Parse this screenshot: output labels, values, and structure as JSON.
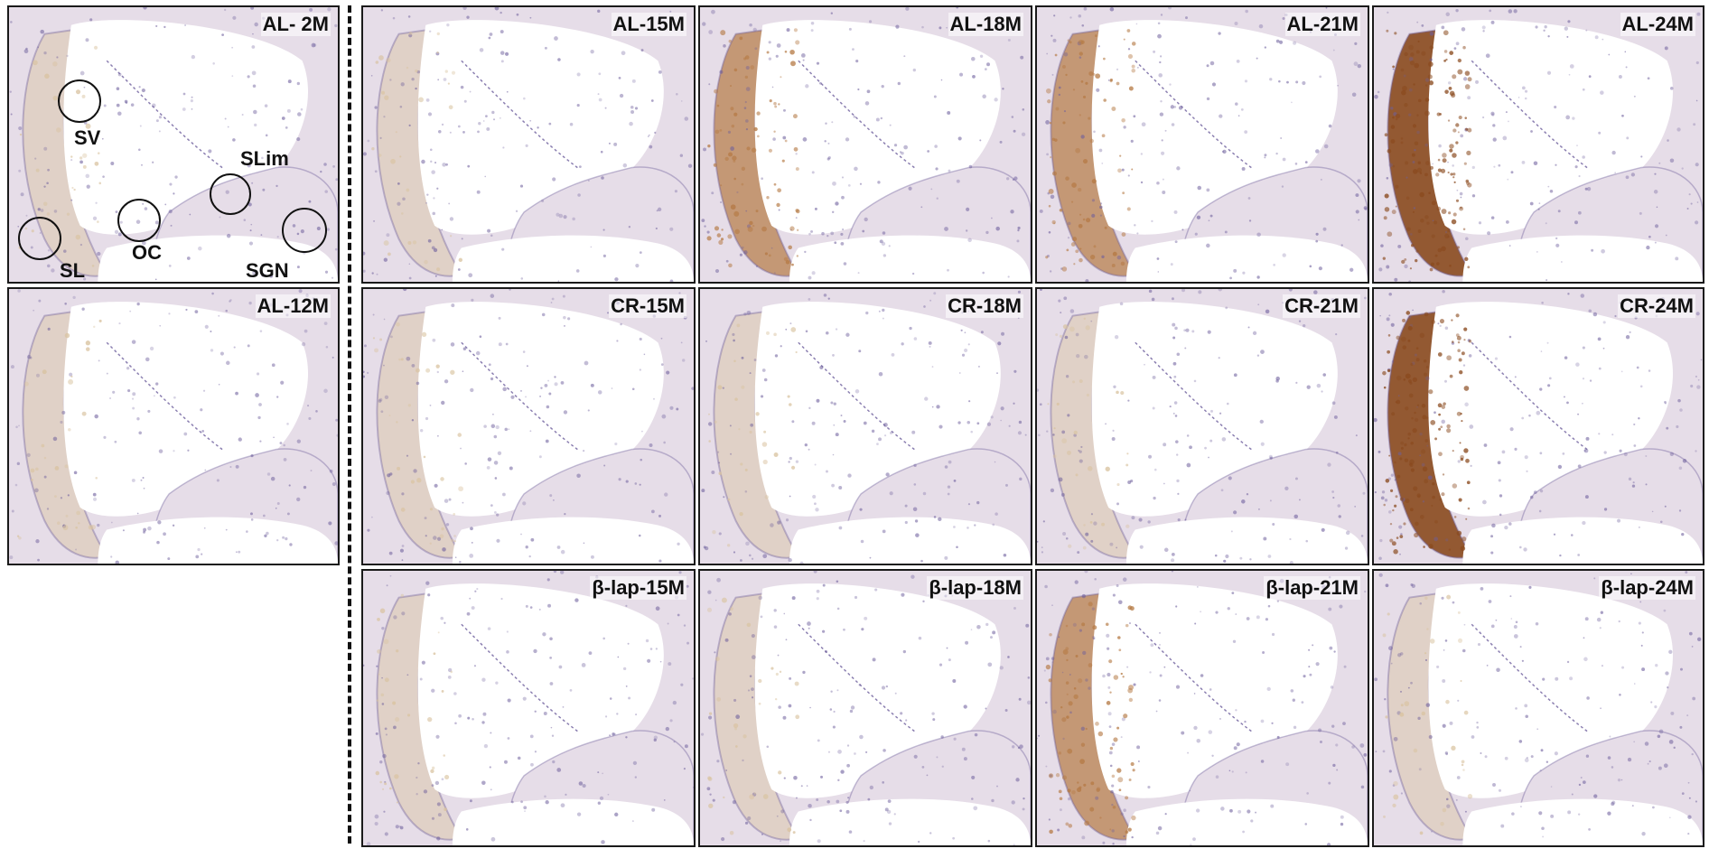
{
  "figure": {
    "panels": [
      {
        "id": "p-2m",
        "label": "AL-   2M",
        "stain": "light"
      },
      {
        "id": "p-12m",
        "label": "AL-12M",
        "stain": "light"
      },
      {
        "id": "p-al15",
        "label": "AL-15M",
        "stain": "light"
      },
      {
        "id": "p-al18",
        "label": "AL-18M",
        "stain": "medium"
      },
      {
        "id": "p-al21",
        "label": "AL-21M",
        "stain": "medium"
      },
      {
        "id": "p-al24",
        "label": "AL-24M",
        "stain": "strong"
      },
      {
        "id": "p-cr15",
        "label": "CR-15M",
        "stain": "light"
      },
      {
        "id": "p-cr18",
        "label": "CR-18M",
        "stain": "light"
      },
      {
        "id": "p-cr21",
        "label": "CR-21M",
        "stain": "light"
      },
      {
        "id": "p-cr24",
        "label": "CR-24M",
        "stain": "strong"
      },
      {
        "id": "p-bl15",
        "label": "β-lap-15M",
        "stain": "light"
      },
      {
        "id": "p-bl18",
        "label": "β-lap-18M",
        "stain": "light"
      },
      {
        "id": "p-bl21",
        "label": "β-lap-21M",
        "stain": "medium"
      },
      {
        "id": "p-bl24",
        "label": "β-lap-24M",
        "stain": "light"
      }
    ],
    "regions": {
      "sv": "SV",
      "slim": "SLim",
      "sl": "SL",
      "oc": "OC",
      "sgn": "SGN"
    },
    "colors": {
      "background_tissue": "#e6dde8",
      "hematoxylin": "#6d5e9c",
      "dab_light": "#d9c3a0",
      "dab_medium": "#b57a45",
      "dab_strong": "#8a4a1e",
      "lumen": "#ffffff"
    }
  }
}
